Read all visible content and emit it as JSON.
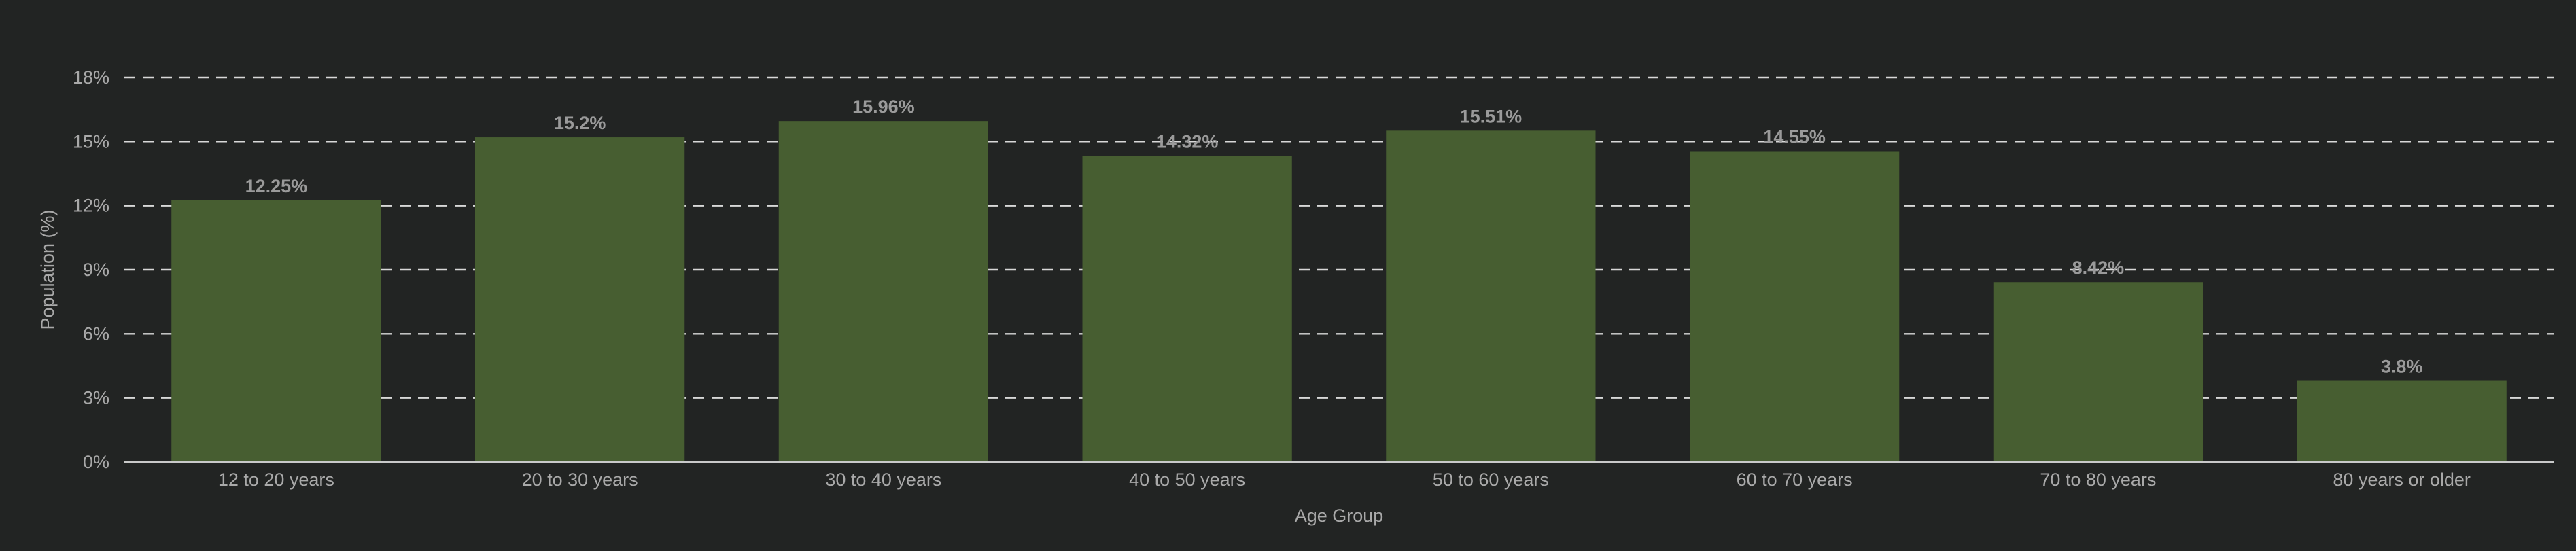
{
  "chart_data": {
    "type": "bar",
    "categories": [
      "12 to 20 years",
      "20 to 30 years",
      "30 to 40 years",
      "40 to 50 years",
      "50 to 60 years",
      "60 to 70 years",
      "70 to 80 years",
      "80 years or older"
    ],
    "values": [
      12.25,
      15.2,
      15.96,
      14.32,
      15.51,
      14.55,
      8.42,
      3.8
    ],
    "data_labels": [
      "12.25%",
      "15.2%",
      "15.96%",
      "14.32%",
      "15.51%",
      "14.55%",
      "8.42%",
      "3.8%"
    ],
    "xlabel": "Age Group",
    "ylabel": "Population (%)",
    "ylim": [
      0,
      18
    ],
    "yticks": [
      0,
      3,
      6,
      9,
      12,
      15,
      18
    ],
    "ytick_labels": [
      "0%",
      "3%",
      "6%",
      "9%",
      "12%",
      "15%",
      "18%"
    ],
    "grid": true,
    "bar_color": "#475e31",
    "background_color": "#222423"
  }
}
